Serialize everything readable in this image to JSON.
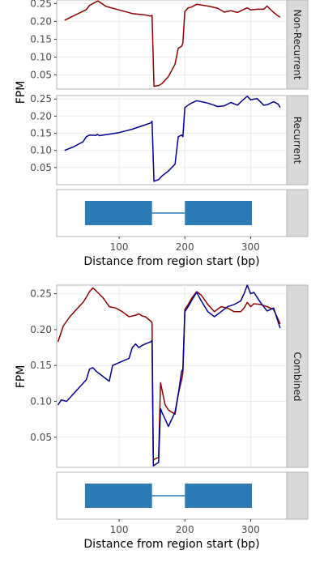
{
  "colors": {
    "nonrecurrent": "#8b0000",
    "recurrent": "#00008b",
    "exon": "#2c7bb6",
    "strip": "#d9d9d9",
    "panel_border": "#b3b3b3",
    "grid": "#ebebeb"
  },
  "chart_data": [
    {
      "type": "line",
      "facet": "Non-Recurrent",
      "ylabel": "FPM",
      "xlim": [
        5,
        355
      ],
      "ylim": [
        0.01,
        0.26
      ],
      "x_ticks": [
        100,
        200,
        300
      ],
      "y_ticks": [
        0.05,
        0.1,
        0.15,
        0.2,
        0.25
      ],
      "y_tick_labels": [
        "0.05",
        "0.10",
        "0.15",
        "0.20",
        "0.25"
      ],
      "series": [
        {
          "key": "nonrecurrent",
          "x": [
            17,
            30,
            50,
            55,
            65,
            68,
            80,
            100,
            120,
            140,
            148,
            150,
            153,
            160,
            165,
            175,
            185,
            190,
            195,
            197,
            200,
            205,
            210,
            218,
            235,
            250,
            260,
            270,
            280,
            290,
            295,
            300,
            310,
            320,
            325,
            335,
            342,
            345
          ],
          "y": [
            0.203,
            0.215,
            0.233,
            0.245,
            0.255,
            0.257,
            0.242,
            0.232,
            0.222,
            0.218,
            0.215,
            0.217,
            0.018,
            0.02,
            0.025,
            0.045,
            0.08,
            0.125,
            0.13,
            0.14,
            0.228,
            0.238,
            0.24,
            0.248,
            0.243,
            0.237,
            0.226,
            0.23,
            0.225,
            0.234,
            0.238,
            0.232,
            0.234,
            0.234,
            0.243,
            0.225,
            0.215,
            0.212
          ]
        }
      ]
    },
    {
      "type": "line",
      "facet": "Recurrent",
      "ylabel": "FPM",
      "xlim": [
        5,
        355
      ],
      "ylim": [
        0.0,
        0.26
      ],
      "x_ticks": [
        100,
        200,
        300
      ],
      "y_ticks": [
        0.05,
        0.1,
        0.15,
        0.2,
        0.25
      ],
      "y_tick_labels": [
        "0.05",
        "0.10",
        "0.15",
        "0.20",
        "0.25"
      ],
      "series": [
        {
          "key": "recurrent",
          "x": [
            17,
            30,
            45,
            50,
            55,
            65,
            67,
            70,
            80,
            100,
            120,
            140,
            148,
            150,
            153,
            160,
            165,
            175,
            185,
            190,
            195,
            197,
            200,
            205,
            210,
            218,
            235,
            250,
            260,
            270,
            280,
            290,
            295,
            300,
            310,
            320,
            325,
            335,
            342,
            345
          ],
          "y": [
            0.1,
            0.11,
            0.125,
            0.14,
            0.145,
            0.144,
            0.147,
            0.143,
            0.146,
            0.152,
            0.162,
            0.175,
            0.18,
            0.185,
            0.01,
            0.015,
            0.025,
            0.04,
            0.06,
            0.14,
            0.145,
            0.14,
            0.225,
            0.232,
            0.238,
            0.245,
            0.238,
            0.228,
            0.23,
            0.24,
            0.232,
            0.25,
            0.258,
            0.248,
            0.251,
            0.232,
            0.233,
            0.242,
            0.235,
            0.225
          ]
        }
      ]
    },
    {
      "type": "line",
      "facet": "Combined",
      "ylabel": "FPM",
      "xlabel": "Distance from region start (bp)",
      "xlim": [
        5,
        355
      ],
      "ylim": [
        0.008,
        0.262
      ],
      "x_ticks": [
        100,
        200,
        300
      ],
      "x_tick_labels": [
        "100",
        "200",
        "300"
      ],
      "y_ticks": [
        0.05,
        0.1,
        0.15,
        0.2,
        0.25
      ],
      "y_tick_labels": [
        "0.05",
        "0.10",
        "0.15",
        "0.20",
        "0.25"
      ],
      "series": [
        {
          "key": "nonrecurrent",
          "x": [
            7,
            15,
            25,
            35,
            45,
            50,
            55,
            60,
            65,
            75,
            85,
            95,
            105,
            115,
            125,
            130,
            135,
            140,
            145,
            148,
            150,
            152,
            155,
            160,
            163,
            165,
            170,
            175,
            185,
            190,
            195,
            197,
            200,
            205,
            210,
            218,
            225,
            235,
            245,
            255,
            265,
            275,
            285,
            290,
            295,
            300,
            305,
            315,
            325,
            335,
            345
          ],
          "y": [
            0.183,
            0.205,
            0.218,
            0.228,
            0.238,
            0.245,
            0.253,
            0.258,
            0.254,
            0.245,
            0.232,
            0.23,
            0.225,
            0.218,
            0.22,
            0.222,
            0.219,
            0.218,
            0.214,
            0.212,
            0.21,
            0.018,
            0.02,
            0.022,
            0.126,
            0.117,
            0.095,
            0.088,
            0.082,
            0.11,
            0.13,
            0.14,
            0.228,
            0.235,
            0.243,
            0.253,
            0.248,
            0.235,
            0.225,
            0.232,
            0.23,
            0.225,
            0.225,
            0.23,
            0.238,
            0.232,
            0.236,
            0.235,
            0.232,
            0.228,
            0.208
          ]
        },
        {
          "key": "recurrent",
          "x": [
            7,
            12,
            20,
            30,
            40,
            50,
            55,
            60,
            65,
            75,
            85,
            90,
            95,
            105,
            115,
            120,
            125,
            130,
            135,
            140,
            145,
            148,
            150,
            152,
            155,
            160,
            163,
            165,
            170,
            175,
            185,
            190,
            195,
            197,
            200,
            205,
            210,
            218,
            225,
            235,
            245,
            255,
            265,
            275,
            285,
            290,
            295,
            300,
            305,
            315,
            325,
            335,
            345
          ],
          "y": [
            0.095,
            0.102,
            0.1,
            0.11,
            0.12,
            0.13,
            0.145,
            0.147,
            0.142,
            0.135,
            0.128,
            0.15,
            0.152,
            0.156,
            0.16,
            0.175,
            0.18,
            0.175,
            0.178,
            0.18,
            0.182,
            0.183,
            0.185,
            0.01,
            0.012,
            0.015,
            0.09,
            0.085,
            0.075,
            0.065,
            0.085,
            0.11,
            0.142,
            0.145,
            0.225,
            0.232,
            0.24,
            0.252,
            0.24,
            0.225,
            0.218,
            0.225,
            0.232,
            0.235,
            0.24,
            0.25,
            0.262,
            0.25,
            0.252,
            0.238,
            0.226,
            0.23,
            0.202
          ]
        }
      ]
    }
  ],
  "gene_model": {
    "exons": [
      [
        48,
        150
      ],
      [
        200,
        302
      ]
    ],
    "intron": [
      150,
      200
    ],
    "x_ticks": [
      100,
      200,
      300
    ],
    "x_tick_labels": [
      "100",
      "200",
      "300"
    ],
    "xlabel": "Distance from region start (bp)"
  }
}
